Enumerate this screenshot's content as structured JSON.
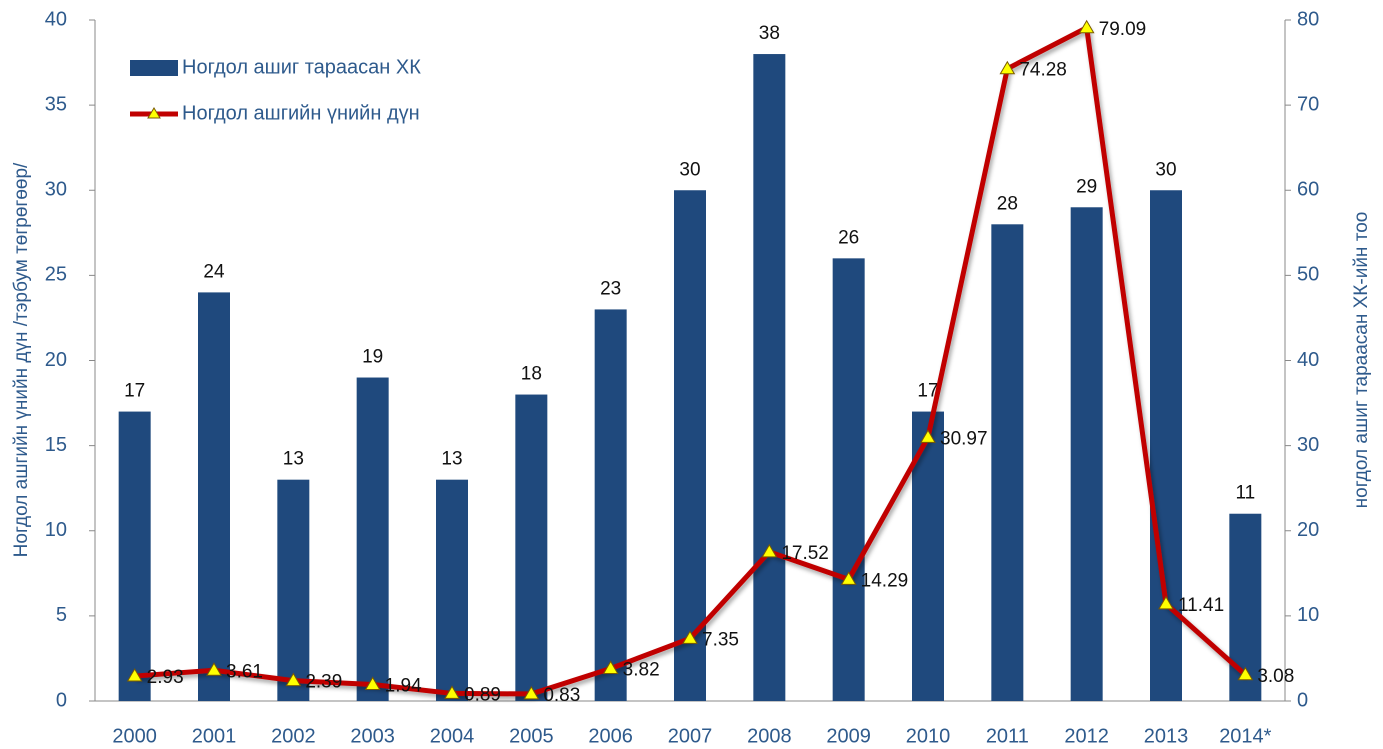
{
  "chart_data": {
    "type": "bar",
    "categories": [
      "2000",
      "2001",
      "2002",
      "2003",
      "2004",
      "2005",
      "2006",
      "2007",
      "2008",
      "2009",
      "2010",
      "2011",
      "2012",
      "2013",
      "2014*"
    ],
    "series": [
      {
        "name": "Ногдол ашиг тараасан ХК",
        "type": "bar",
        "color": "#1f497d",
        "values": [
          17,
          24,
          13,
          19,
          13,
          18,
          23,
          30,
          38,
          26,
          17,
          28,
          29,
          30,
          11
        ]
      },
      {
        "name": "Ногдол ашгийн үнийн дүн",
        "type": "line",
        "axis": "y2",
        "color": "#c00000",
        "marker_color": "#ffff00",
        "values": [
          2.93,
          3.61,
          2.39,
          1.94,
          0.89,
          0.83,
          3.82,
          7.35,
          17.52,
          14.29,
          30.97,
          74.28,
          79.09,
          11.41,
          3.08
        ]
      }
    ],
    "ylabel": "Ногдол ашгийн үнийн дүн /тэрбум төгрөгөөр/",
    "y2label": "ногдол ашиг тараасан ХК-ийн тоо",
    "ylim": [
      0,
      40
    ],
    "yticks": [
      0,
      5,
      10,
      15,
      20,
      25,
      30,
      35,
      40
    ],
    "y2lim": [
      0,
      80
    ],
    "y2ticks": [
      0,
      10,
      20,
      30,
      40,
      50,
      60,
      70,
      80
    ],
    "legend": "upper left",
    "grid": false
  }
}
